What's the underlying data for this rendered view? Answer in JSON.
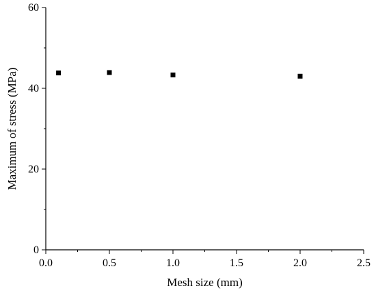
{
  "chart_data": {
    "type": "scatter",
    "title": "",
    "xlabel": "Mesh size (mm)",
    "ylabel": "Maximum of stress (MPa)",
    "xlim": [
      0.0,
      2.5
    ],
    "ylim": [
      0,
      60
    ],
    "x_ticks": [
      "0.0",
      "0.5",
      "1.0",
      "1.5",
      "2.0",
      "2.5"
    ],
    "x_tick_values": [
      0.0,
      0.5,
      1.0,
      1.5,
      2.0,
      2.5
    ],
    "y_ticks": [
      "0",
      "20",
      "40",
      "60"
    ],
    "y_tick_values": [
      0,
      20,
      40,
      60
    ],
    "grid": false,
    "marker": "square",
    "marker_color": "#000000",
    "series": [
      {
        "x": [
          0.1,
          0.5,
          1.0,
          2.0
        ],
        "y": [
          43.8,
          43.9,
          43.3,
          43.0
        ]
      }
    ]
  }
}
